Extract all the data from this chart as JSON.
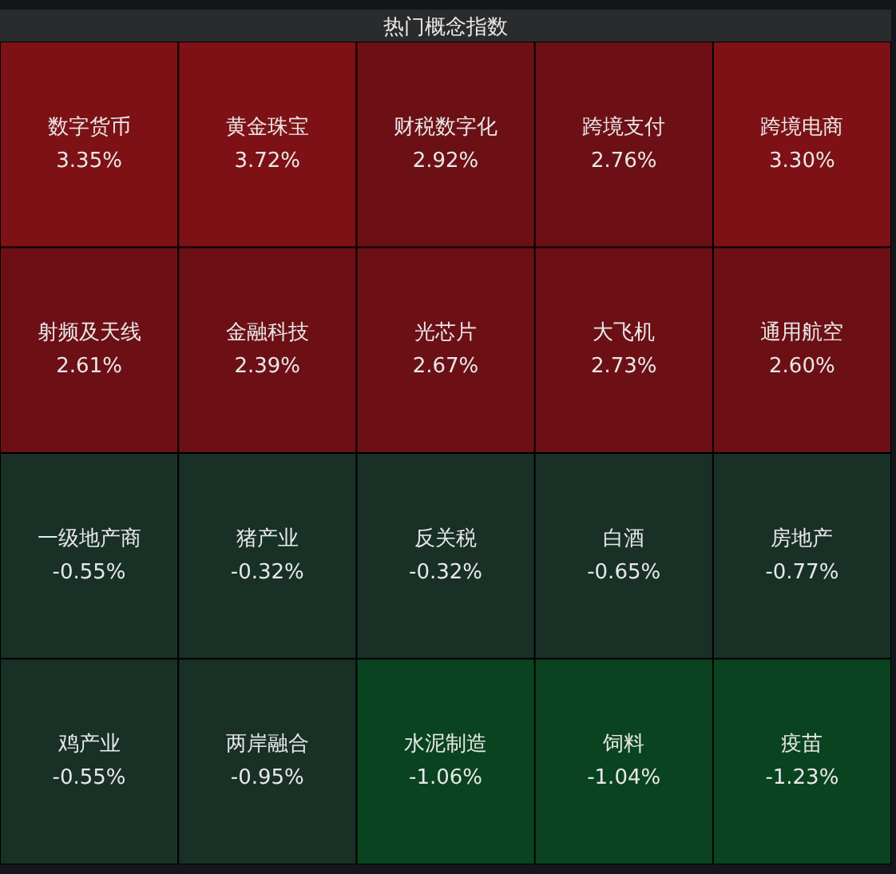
{
  "chart_data": {
    "type": "other",
    "title": "热门概念指数",
    "categories": [
      "数字货币",
      "黄金珠宝",
      "财税数字化",
      "跨境支付",
      "跨境电商",
      "射频及天线",
      "金融科技",
      "光芯片",
      "大飞机",
      "通用航空",
      "一级地产商",
      "猪产业",
      "反关税",
      "白酒",
      "房地产",
      "鸡产业",
      "两岸融合",
      "水泥制造",
      "饲料",
      "疫苗"
    ],
    "values": [
      3.35,
      3.72,
      2.92,
      2.76,
      3.3,
      2.61,
      2.39,
      2.67,
      2.73,
      2.6,
      -0.55,
      -0.32,
      -0.32,
      -0.65,
      -0.77,
      -0.55,
      -0.95,
      -1.06,
      -1.04,
      -1.23
    ],
    "value_labels": [
      "3.35%",
      "3.72%",
      "2.92%",
      "2.76%",
      "3.30%",
      "2.61%",
      "2.39%",
      "2.67%",
      "2.73%",
      "2.60%",
      "-0.55%",
      "-0.32%",
      "-0.32%",
      "-0.65%",
      "-0.77%",
      "-0.55%",
      "-0.95%",
      "-1.06%",
      "-1.04%",
      "-1.23%"
    ],
    "colors": [
      "#7d1115",
      "#7d1115",
      "#6c1016",
      "#6c1016",
      "#7d1115",
      "#6c1016",
      "#6c1016",
      "#6c1016",
      "#6c1016",
      "#6c1016",
      "#183026",
      "#183026",
      "#183026",
      "#183026",
      "#183026",
      "#183026",
      "#183026",
      "#0a4320",
      "#0a4320",
      "#0a4320"
    ]
  }
}
